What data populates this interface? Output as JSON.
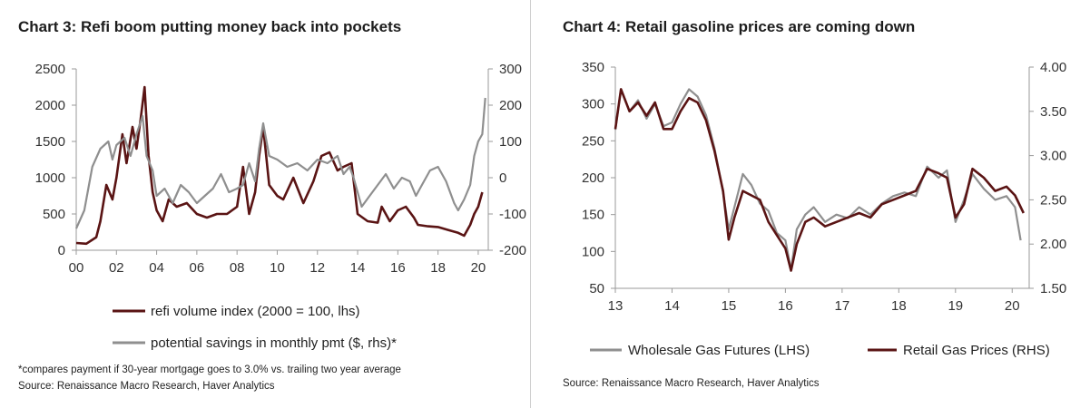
{
  "charts": [
    {
      "title": "Chart 3: Refi boom putting money back into pockets",
      "footnote": "*compares payment if 30-year mortgage goes to 3.0% vs. trailing  two year average",
      "source": "Source: Renaissance Macro Research, Haver Analytics"
    },
    {
      "title": "Chart 4: Retail gasoline prices are coming down",
      "source": "Source: Renaissance Macro Research, Haver Analytics"
    }
  ],
  "colors": {
    "dark_series": "#5a1414",
    "gray_series": "#8f8f8f",
    "axis": "#9a9a9a"
  },
  "chart_data": [
    {
      "type": "line",
      "title": "Chart 3: Refi boom putting money back into pockets",
      "x_ticks": [
        "00",
        "02",
        "04",
        "06",
        "08",
        "10",
        "12",
        "14",
        "16",
        "18",
        "20"
      ],
      "x_range": [
        2000,
        2020.5
      ],
      "y_left": {
        "range": [
          0,
          2500
        ],
        "ticks": [
          "0",
          "500",
          "1000",
          "1500",
          "2000",
          "2500"
        ]
      },
      "y_right": {
        "range": [
          -200,
          300
        ],
        "ticks": [
          "-200",
          "-100",
          "0",
          "100",
          "200",
          "300"
        ]
      },
      "series": [
        {
          "name": "refi volume index (2000 = 100, lhs)",
          "axis": "left",
          "color": "#5a1414",
          "x": [
            2000.0,
            2000.5,
            2001.0,
            2001.2,
            2001.5,
            2001.8,
            2002.0,
            2002.3,
            2002.5,
            2002.8,
            2003.0,
            2003.2,
            2003.4,
            2003.6,
            2003.8,
            2004.0,
            2004.3,
            2004.6,
            2005.0,
            2005.5,
            2006.0,
            2006.5,
            2007.0,
            2007.5,
            2008.0,
            2008.3,
            2008.6,
            2008.9,
            2009.1,
            2009.3,
            2009.6,
            2010.0,
            2010.3,
            2010.8,
            2011.3,
            2011.8,
            2012.2,
            2012.6,
            2013.0,
            2013.3,
            2013.7,
            2014.0,
            2014.5,
            2015.0,
            2015.2,
            2015.6,
            2016.0,
            2016.4,
            2016.8,
            2017.0,
            2017.5,
            2018.0,
            2018.5,
            2019.0,
            2019.3,
            2019.6,
            2019.8,
            2020.0,
            2020.2
          ],
          "y": [
            100,
            90,
            180,
            400,
            900,
            700,
            1000,
            1600,
            1200,
            1700,
            1400,
            1800,
            2250,
            1300,
            800,
            550,
            400,
            700,
            600,
            650,
            500,
            450,
            500,
            500,
            600,
            1150,
            500,
            800,
            1300,
            1700,
            900,
            750,
            700,
            1000,
            650,
            950,
            1300,
            1350,
            1100,
            1150,
            1200,
            500,
            400,
            380,
            600,
            400,
            550,
            600,
            450,
            350,
            330,
            320,
            280,
            240,
            200,
            350,
            500,
            600,
            800
          ]
        },
        {
          "name": "potential savings in monthly pmt ($, rhs)*",
          "axis": "right",
          "color": "#8f8f8f",
          "x": [
            2000.0,
            2000.4,
            2000.8,
            2001.2,
            2001.6,
            2001.8,
            2002.0,
            2002.4,
            2002.7,
            2003.0,
            2003.3,
            2003.5,
            2003.8,
            2004.0,
            2004.4,
            2004.8,
            2005.2,
            2005.6,
            2006.0,
            2006.4,
            2006.8,
            2007.2,
            2007.6,
            2008.0,
            2008.3,
            2008.6,
            2008.9,
            2009.1,
            2009.3,
            2009.6,
            2010.0,
            2010.5,
            2011.0,
            2011.5,
            2012.0,
            2012.5,
            2013.0,
            2013.3,
            2013.6,
            2013.8,
            2014.2,
            2014.6,
            2015.0,
            2015.4,
            2015.8,
            2016.2,
            2016.6,
            2016.9,
            2017.2,
            2017.6,
            2018.0,
            2018.4,
            2018.8,
            2019.0,
            2019.3,
            2019.6,
            2019.8,
            2020.0,
            2020.2,
            2020.35
          ],
          "y": [
            -140,
            -90,
            30,
            80,
            100,
            50,
            90,
            110,
            60,
            120,
            170,
            60,
            20,
            -50,
            -30,
            -70,
            -20,
            -40,
            -70,
            -50,
            -30,
            10,
            -40,
            -30,
            -20,
            40,
            -10,
            80,
            150,
            60,
            50,
            30,
            40,
            20,
            50,
            40,
            60,
            10,
            30,
            0,
            -80,
            -50,
            -20,
            10,
            -30,
            0,
            -10,
            -50,
            -20,
            20,
            30,
            -10,
            -70,
            -90,
            -60,
            -20,
            60,
            100,
            120,
            220
          ]
        }
      ]
    },
    {
      "type": "line",
      "title": "Chart 4: Retail gasoline prices are coming down",
      "x_ticks": [
        "13",
        "14",
        "15",
        "16",
        "17",
        "18",
        "19",
        "20"
      ],
      "x_range": [
        2013,
        2020.3
      ],
      "y_left": {
        "range": [
          50,
          350
        ],
        "ticks": [
          "50",
          "100",
          "150",
          "200",
          "250",
          "300",
          "350"
        ]
      },
      "y_right": {
        "range": [
          1.5,
          4.0
        ],
        "ticks": [
          "1.50",
          "2.00",
          "2.50",
          "3.00",
          "3.50",
          "4.00"
        ]
      },
      "series": [
        {
          "name": "Wholesale Gas Futures (LHS)",
          "axis": "left",
          "color": "#8f8f8f",
          "x": [
            2013.0,
            2013.1,
            2013.25,
            2013.4,
            2013.55,
            2013.7,
            2013.85,
            2014.0,
            2014.15,
            2014.3,
            2014.45,
            2014.6,
            2014.75,
            2014.9,
            2015.0,
            2015.1,
            2015.25,
            2015.4,
            2015.55,
            2015.7,
            2015.85,
            2016.0,
            2016.1,
            2016.2,
            2016.35,
            2016.5,
            2016.7,
            2016.9,
            2017.1,
            2017.3,
            2017.5,
            2017.7,
            2017.9,
            2018.1,
            2018.3,
            2018.5,
            2018.7,
            2018.85,
            2019.0,
            2019.15,
            2019.3,
            2019.5,
            2019.7,
            2019.9,
            2020.05,
            2020.15
          ],
          "y": [
            265,
            320,
            290,
            305,
            280,
            300,
            270,
            275,
            300,
            320,
            310,
            285,
            240,
            180,
            130,
            160,
            205,
            190,
            165,
            155,
            125,
            115,
            75,
            130,
            150,
            160,
            140,
            150,
            145,
            160,
            150,
            165,
            175,
            180,
            175,
            215,
            200,
            210,
            140,
            170,
            205,
            185,
            170,
            175,
            160,
            115
          ]
        },
        {
          "name": "Retail Gas Prices (RHS)",
          "axis": "right",
          "color": "#5a1414",
          "x": [
            2013.0,
            2013.1,
            2013.25,
            2013.4,
            2013.55,
            2013.7,
            2013.85,
            2014.0,
            2014.15,
            2014.3,
            2014.45,
            2014.6,
            2014.75,
            2014.9,
            2015.0,
            2015.1,
            2015.25,
            2015.4,
            2015.55,
            2015.7,
            2015.85,
            2016.0,
            2016.1,
            2016.2,
            2016.35,
            2016.5,
            2016.7,
            2016.9,
            2017.1,
            2017.3,
            2017.5,
            2017.7,
            2017.9,
            2018.1,
            2018.3,
            2018.5,
            2018.7,
            2018.85,
            2019.0,
            2019.15,
            2019.3,
            2019.5,
            2019.7,
            2019.9,
            2020.05,
            2020.2
          ],
          "y": [
            3.3,
            3.75,
            3.5,
            3.6,
            3.45,
            3.6,
            3.3,
            3.3,
            3.5,
            3.65,
            3.6,
            3.4,
            3.05,
            2.6,
            2.05,
            2.3,
            2.6,
            2.55,
            2.5,
            2.25,
            2.1,
            1.95,
            1.7,
            2.0,
            2.25,
            2.3,
            2.2,
            2.25,
            2.3,
            2.35,
            2.3,
            2.45,
            2.5,
            2.55,
            2.6,
            2.85,
            2.8,
            2.75,
            2.3,
            2.45,
            2.85,
            2.75,
            2.6,
            2.65,
            2.55,
            2.35
          ]
        }
      ]
    }
  ]
}
